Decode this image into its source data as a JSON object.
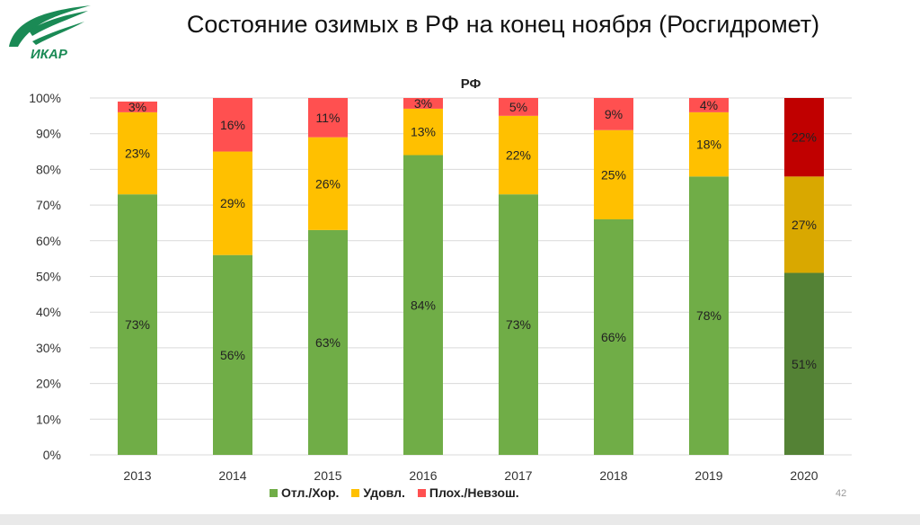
{
  "slide": {
    "title": "Состояние озимых в РФ на конец ноября (Росгидромет)",
    "logo_text": "ИКАР",
    "page_number": "42"
  },
  "colors": {
    "good": "#70ad47",
    "fair": "#ffc000",
    "poor": "#ff5050",
    "good_2020": "#548235",
    "fair_2020": "#d9a800",
    "poor_2020": "#c00000"
  },
  "chart_data": {
    "type": "bar",
    "stacked": true,
    "title": "РФ",
    "categories": [
      "2013",
      "2014",
      "2015",
      "2016",
      "2017",
      "2018",
      "2019",
      "2020"
    ],
    "series": [
      {
        "name": "Отл./Хор.",
        "values": [
          73,
          56,
          63,
          84,
          73,
          66,
          78,
          51
        ]
      },
      {
        "name": "Удовл.",
        "values": [
          23,
          29,
          26,
          13,
          22,
          25,
          18,
          27
        ]
      },
      {
        "name": "Плох./Невзош.",
        "values": [
          3,
          16,
          11,
          3,
          5,
          9,
          4,
          22
        ]
      }
    ],
    "ylim": [
      0,
      100
    ],
    "yticks": [
      "0%",
      "10%",
      "20%",
      "30%",
      "40%",
      "50%",
      "60%",
      "70%",
      "80%",
      "90%",
      "100%"
    ],
    "grid": true,
    "legend": "bottom"
  }
}
